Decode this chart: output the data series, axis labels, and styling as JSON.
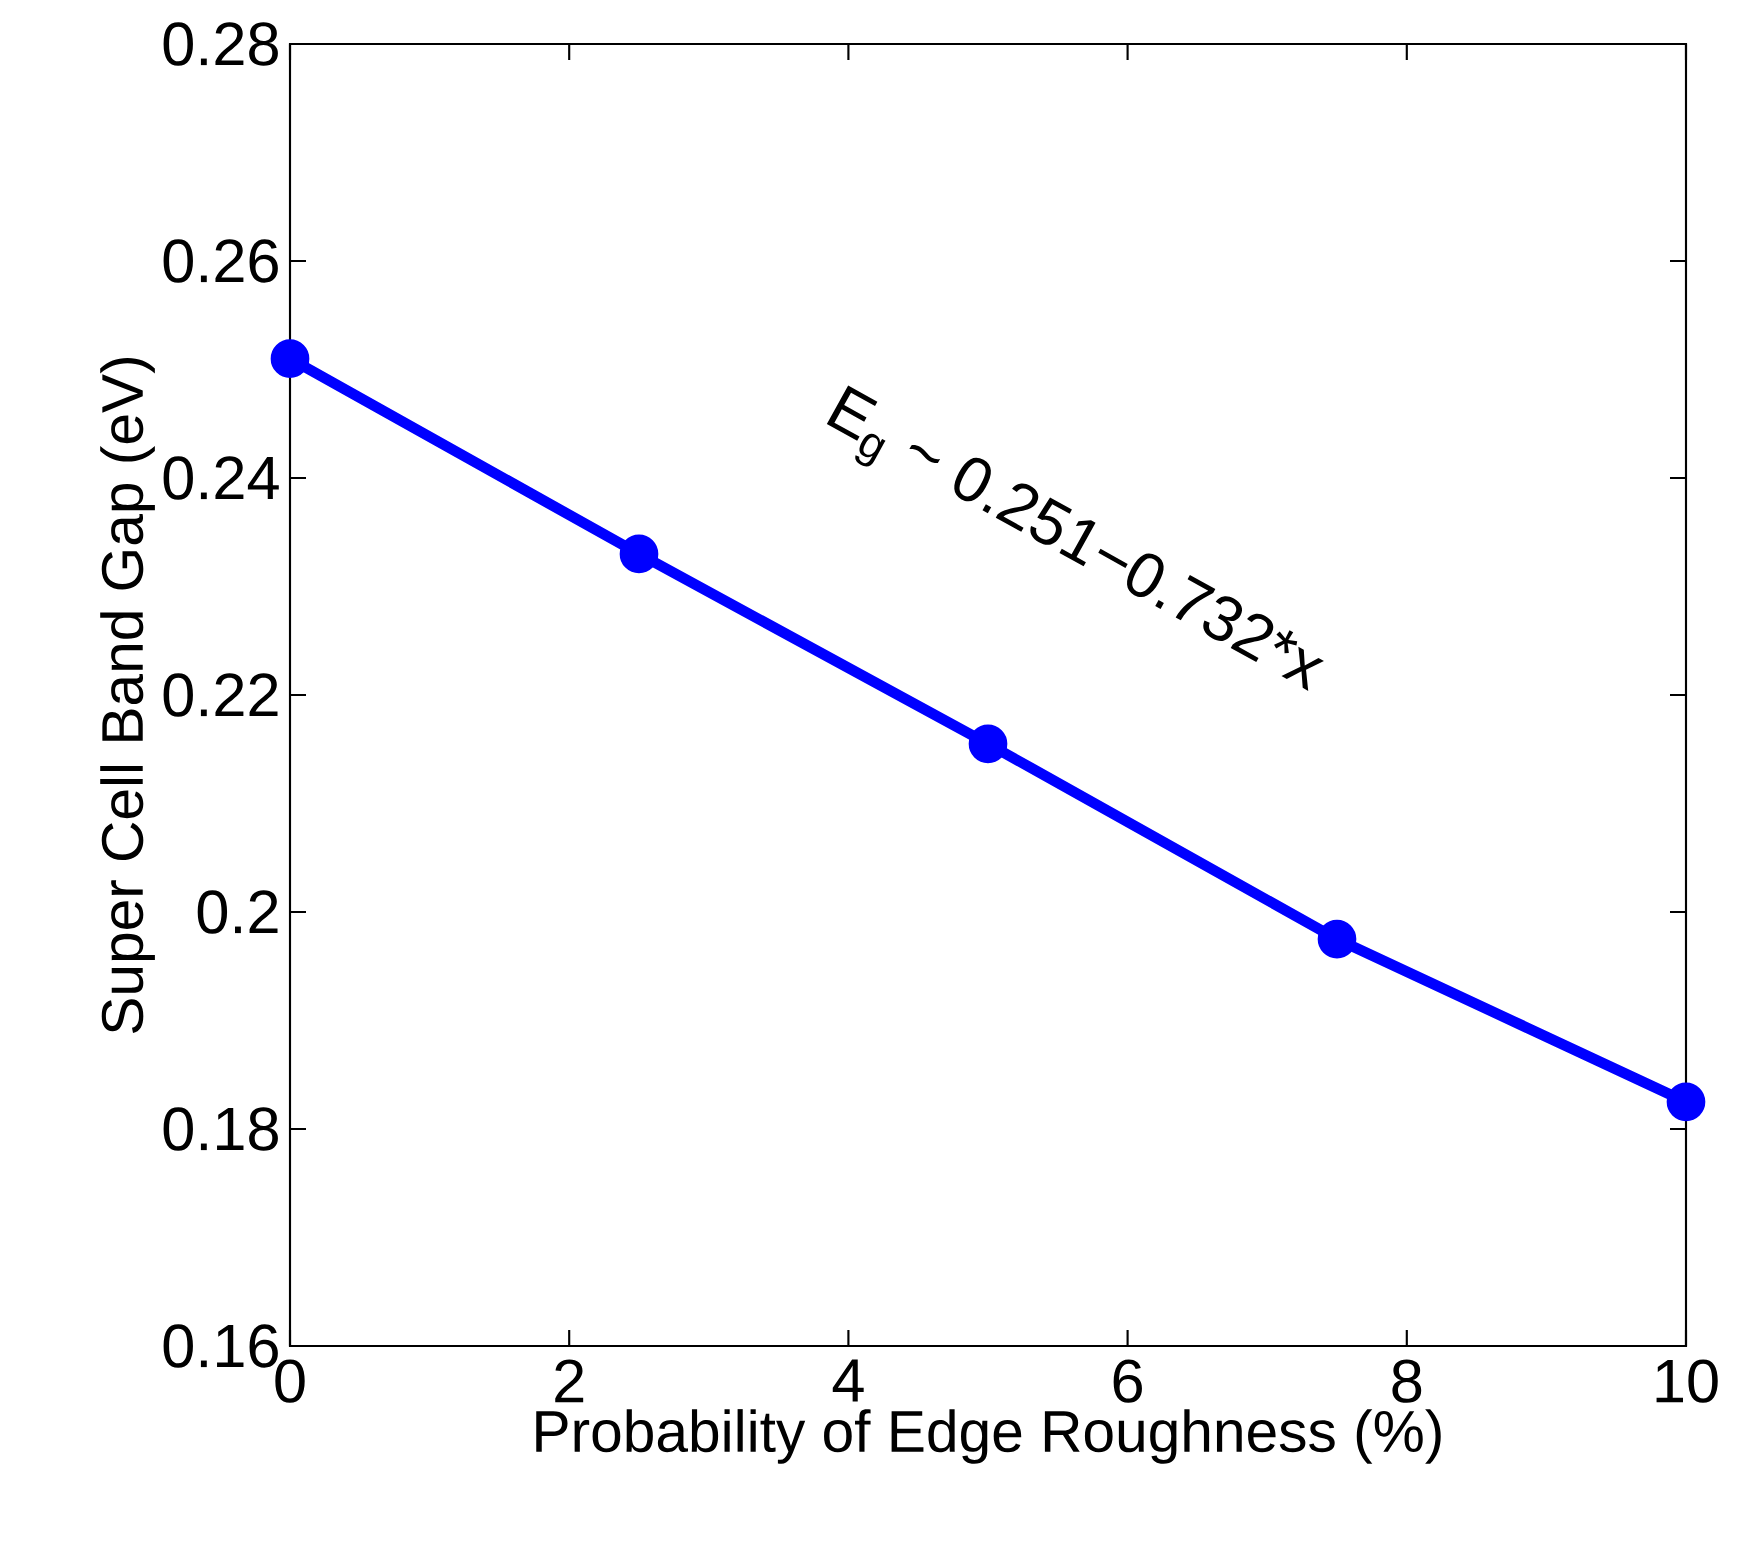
{
  "chart_data": {
    "type": "line",
    "xlabel": "Probability of Edge Roughness (%)",
    "ylabel": "Super Cell Band Gap (eV)",
    "x": [
      0,
      2.5,
      5,
      7.5,
      10
    ],
    "series": [
      {
        "color": "#0000ff",
        "values": [
          0.251,
          0.233,
          0.2155,
          0.1975,
          0.1825
        ]
      }
    ],
    "marker": "circle",
    "line_style": "solid",
    "xlim": [
      0,
      10
    ],
    "xticks": [
      0,
      2,
      4,
      6,
      8,
      10
    ],
    "ylim": [
      0.16,
      0.28
    ],
    "yticks": [
      0.16,
      0.18,
      0.2,
      0.22,
      0.24,
      0.26,
      0.28
    ],
    "annotations": [
      "E$_{g}$ ~ 0.251−0.732*x"
    ]
  }
}
